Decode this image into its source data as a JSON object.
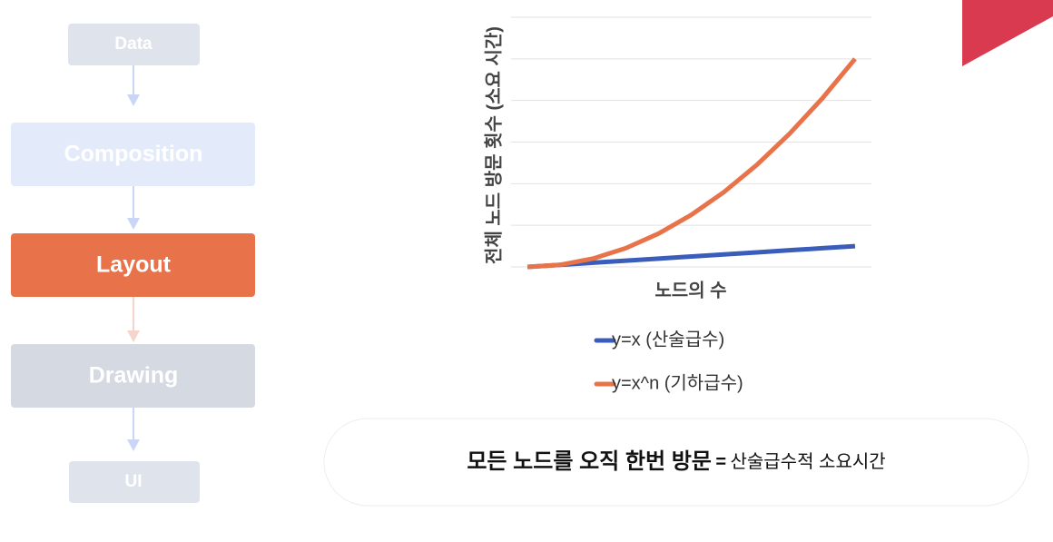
{
  "pipeline": [
    "Data",
    "Composition",
    "Layout",
    "Drawing",
    "UI"
  ],
  "chart_data": {
    "type": "line",
    "y_label": "전체 노드 방문 횟수 (소요 시간)",
    "x_label": "노드의 수",
    "categories": [
      null,
      null,
      null,
      null,
      null,
      null,
      null,
      null,
      null,
      null,
      null
    ],
    "series": [
      {
        "name": "y=x (산술급수)",
        "color": "#3a5dbc",
        "values": [
          0,
          0.05,
          0.1,
          0.15,
          0.2,
          0.25,
          0.3,
          0.35,
          0.4,
          0.45,
          0.5
        ]
      },
      {
        "name": "y=x^n (기하급수)",
        "color": "#e8734a",
        "values": [
          0,
          0.05,
          0.2,
          0.45,
          0.8,
          1.25,
          1.8,
          2.45,
          3.2,
          4.05,
          5
        ]
      }
    ],
    "ylim": [
      0,
      6
    ],
    "yticks": [
      0,
      1,
      2,
      3,
      4,
      5,
      6
    ],
    "grid": true
  },
  "banner": {
    "emphasis": "모든 노드를 오직 한번 방문",
    "separator": "=",
    "text": "산술급수적 소요시간"
  }
}
